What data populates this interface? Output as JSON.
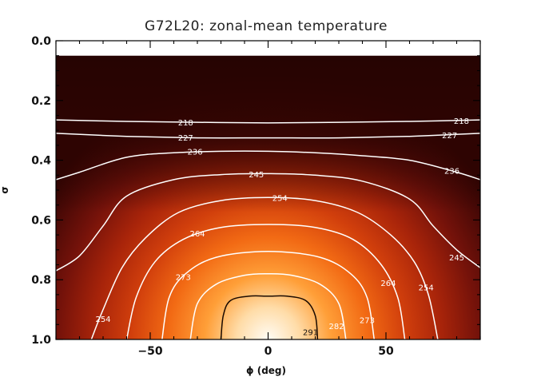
{
  "colors": {
    "frame": "#000000",
    "contour": "#ffffff",
    "contour_hot": "#1a0a00",
    "background": "#ffffff"
  },
  "chart_data": {
    "type": "heatmap",
    "title": "G72L20: zonal-mean temperature",
    "xlabel": "ϕ (deg)",
    "ylabel": "σ",
    "xlim": [
      -90,
      90
    ],
    "ylim": [
      0.0,
      1.0
    ],
    "y_inverted": true,
    "x_ticks": [
      {
        "value": -50,
        "label": "−50"
      },
      {
        "value": 0,
        "label": "0"
      },
      {
        "value": 50,
        "label": "50"
      }
    ],
    "y_ticks": [
      {
        "value": 0.0,
        "label": "0.0"
      },
      {
        "value": 0.2,
        "label": "0.2"
      },
      {
        "value": 0.4,
        "label": "0.4"
      },
      {
        "value": 0.6,
        "label": "0.6"
      },
      {
        "value": 0.8,
        "label": "0.8"
      },
      {
        "value": 1.0,
        "label": "1.0"
      }
    ],
    "data_top_sigma": 0.05,
    "colormap": "red-orange-white",
    "temperature_range": [
      200,
      300
    ],
    "contours": [
      {
        "level": 218,
        "points": [
          [
            -90,
            0.265
          ],
          [
            -60,
            0.27
          ],
          [
            -30,
            0.273
          ],
          [
            0,
            0.275
          ],
          [
            30,
            0.273
          ],
          [
            60,
            0.27
          ],
          [
            90,
            0.265
          ]
        ],
        "labels": [
          {
            "text": "218",
            "x": -35,
            "y": 0.273
          },
          {
            "text": "218",
            "x": 82,
            "y": 0.267
          }
        ]
      },
      {
        "level": 227,
        "points": [
          [
            -90,
            0.31
          ],
          [
            -60,
            0.32
          ],
          [
            -30,
            0.325
          ],
          [
            0,
            0.325
          ],
          [
            30,
            0.325
          ],
          [
            60,
            0.32
          ],
          [
            90,
            0.31
          ]
        ],
        "labels": [
          {
            "text": "227",
            "x": -35,
            "y": 0.323
          },
          {
            "text": "227",
            "x": 77,
            "y": 0.315
          }
        ]
      },
      {
        "level": 236,
        "points": [
          [
            -90,
            0.465
          ],
          [
            -80,
            0.44
          ],
          [
            -60,
            0.39
          ],
          [
            -40,
            0.375
          ],
          [
            -20,
            0.37
          ],
          [
            0,
            0.37
          ],
          [
            20,
            0.375
          ],
          [
            40,
            0.385
          ],
          [
            60,
            0.4
          ],
          [
            80,
            0.44
          ],
          [
            90,
            0.465
          ]
        ],
        "labels": [
          {
            "text": "236",
            "x": -31,
            "y": 0.37
          },
          {
            "text": "236",
            "x": 78,
            "y": 0.435
          }
        ]
      },
      {
        "level": 245,
        "points": [
          [
            -90,
            0.77
          ],
          [
            -80,
            0.72
          ],
          [
            -70,
            0.62
          ],
          [
            -60,
            0.52
          ],
          [
            -40,
            0.465
          ],
          [
            -20,
            0.448
          ],
          [
            0,
            0.445
          ],
          [
            20,
            0.45
          ],
          [
            40,
            0.47
          ],
          [
            60,
            0.53
          ],
          [
            70,
            0.62
          ],
          [
            80,
            0.7
          ],
          [
            90,
            0.76
          ]
        ],
        "labels": [
          {
            "text": "245",
            "x": -5,
            "y": 0.447
          },
          {
            "text": "245",
            "x": 80,
            "y": 0.725
          }
        ]
      },
      {
        "level": 254,
        "points": [
          [
            -75,
            1.0
          ],
          [
            -70,
            0.9
          ],
          [
            -62,
            0.76
          ],
          [
            -52,
            0.66
          ],
          [
            -38,
            0.575
          ],
          [
            -20,
            0.535
          ],
          [
            0,
            0.525
          ],
          [
            20,
            0.535
          ],
          [
            38,
            0.575
          ],
          [
            52,
            0.65
          ],
          [
            62,
            0.74
          ],
          [
            68,
            0.85
          ],
          [
            72,
            1.0
          ]
        ],
        "labels": [
          {
            "text": "254",
            "x": 5,
            "y": 0.525
          },
          {
            "text": "254",
            "x": 67,
            "y": 0.825
          },
          {
            "text": "254",
            "x": -70,
            "y": 0.93
          }
        ]
      },
      {
        "level": 264,
        "points": [
          [
            -60,
            1.0
          ],
          [
            -56,
            0.86
          ],
          [
            -48,
            0.74
          ],
          [
            -36,
            0.665
          ],
          [
            -20,
            0.625
          ],
          [
            0,
            0.615
          ],
          [
            20,
            0.625
          ],
          [
            36,
            0.665
          ],
          [
            48,
            0.75
          ],
          [
            55,
            0.86
          ],
          [
            58,
            1.0
          ]
        ],
        "labels": [
          {
            "text": "264",
            "x": -30,
            "y": 0.645
          },
          {
            "text": "264",
            "x": 51,
            "y": 0.81
          }
        ]
      },
      {
        "level": 273,
        "points": [
          [
            -45,
            1.0
          ],
          [
            -42,
            0.86
          ],
          [
            -35,
            0.78
          ],
          [
            -22,
            0.725
          ],
          [
            0,
            0.705
          ],
          [
            22,
            0.725
          ],
          [
            35,
            0.78
          ],
          [
            42,
            0.86
          ],
          [
            45,
            1.0
          ]
        ],
        "labels": [
          {
            "text": "273",
            "x": -36,
            "y": 0.79
          },
          {
            "text": "273",
            "x": 42,
            "y": 0.935
          }
        ]
      },
      {
        "level": 282,
        "points": [
          [
            -33,
            1.0
          ],
          [
            -30,
            0.88
          ],
          [
            -22,
            0.815
          ],
          [
            -10,
            0.785
          ],
          [
            0,
            0.78
          ],
          [
            10,
            0.785
          ],
          [
            22,
            0.815
          ],
          [
            30,
            0.88
          ],
          [
            33,
            1.0
          ]
        ],
        "labels": [
          {
            "text": "282",
            "x": 29,
            "y": 0.955
          }
        ]
      },
      {
        "level": 291,
        "dark": true,
        "points": [
          [
            -20,
            1.0
          ],
          [
            -19,
            0.92
          ],
          [
            -16,
            0.87
          ],
          [
            -8,
            0.855
          ],
          [
            0,
            0.855
          ],
          [
            8,
            0.855
          ],
          [
            16,
            0.87
          ],
          [
            20,
            0.92
          ],
          [
            21,
            1.0
          ]
        ],
        "labels": [
          {
            "text": "291",
            "x": 18,
            "y": 0.975
          }
        ]
      }
    ]
  }
}
